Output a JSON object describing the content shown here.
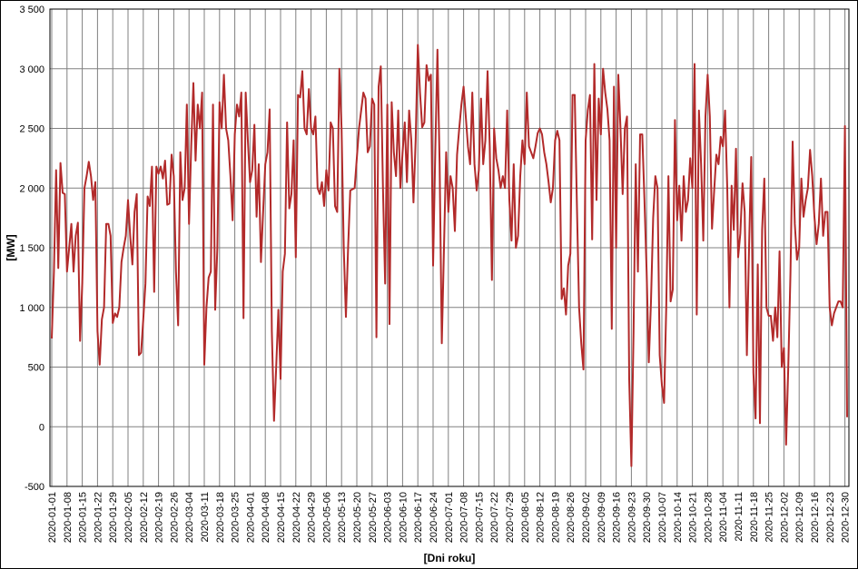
{
  "chart_data": {
    "type": "line",
    "ylabel": "[MW]",
    "xlabel": "[Dni roku]",
    "ylim": [
      -500,
      3500
    ],
    "yticks": [
      -500,
      0,
      500,
      {
        "value": 1000,
        "label": "1 000"
      },
      {
        "value": 1500,
        "label": "1 500"
      },
      {
        "value": 2000,
        "label": "2 000"
      },
      {
        "value": 2500,
        "label": "2 500"
      },
      {
        "value": 3000,
        "label": "3 000"
      },
      {
        "value": 3500,
        "label": "3 500"
      }
    ],
    "grid": true,
    "categories": [
      "2020-01-01",
      null,
      null,
      null,
      null,
      null,
      null,
      "2020-01-08",
      null,
      null,
      null,
      null,
      null,
      null,
      "2020-01-15",
      null,
      null,
      null,
      null,
      null,
      null,
      "2020-01-22",
      null,
      null,
      null,
      null,
      null,
      null,
      "2020-01-29",
      null,
      null,
      null,
      null,
      null,
      null,
      "2020-02-05",
      null,
      null,
      null,
      null,
      null,
      null,
      "2020-02-12",
      null,
      null,
      null,
      null,
      null,
      null,
      "2020-02-19",
      null,
      null,
      null,
      null,
      null,
      null,
      "2020-02-26",
      null,
      null,
      null,
      null,
      null,
      null,
      "2020-03-04",
      null,
      null,
      null,
      null,
      null,
      null,
      "2020-03-11",
      null,
      null,
      null,
      null,
      null,
      null,
      "2020-03-18",
      null,
      null,
      null,
      null,
      null,
      null,
      "2020-03-25",
      null,
      null,
      null,
      null,
      null,
      null,
      "2020-04-01",
      null,
      null,
      null,
      null,
      null,
      null,
      "2020-04-08",
      null,
      null,
      null,
      null,
      null,
      null,
      "2020-04-15",
      null,
      null,
      null,
      null,
      null,
      null,
      "2020-04-22",
      null,
      null,
      null,
      null,
      null,
      null,
      "2020-04-29",
      null,
      null,
      null,
      null,
      null,
      null,
      "2020-05-06",
      null,
      null,
      null,
      null,
      null,
      null,
      "2020-05-13",
      null,
      null,
      null,
      null,
      null,
      null,
      "2020-05-20",
      null,
      null,
      null,
      null,
      null,
      null,
      "2020-05-27",
      null,
      null,
      null,
      null,
      null,
      null,
      "2020-06-03",
      null,
      null,
      null,
      null,
      null,
      null,
      "2020-06-10",
      null,
      null,
      null,
      null,
      null,
      null,
      "2020-06-17",
      null,
      null,
      null,
      null,
      null,
      null,
      "2020-06-24",
      null,
      null,
      null,
      null,
      null,
      null,
      "2020-07-01",
      null,
      null,
      null,
      null,
      null,
      null,
      "2020-07-08",
      null,
      null,
      null,
      null,
      null,
      null,
      "2020-07-15",
      null,
      null,
      null,
      null,
      null,
      null,
      "2020-07-22",
      null,
      null,
      null,
      null,
      null,
      null,
      "2020-07-29",
      null,
      null,
      null,
      null,
      null,
      null,
      "2020-08-05",
      null,
      null,
      null,
      null,
      null,
      null,
      "2020-08-12",
      null,
      null,
      null,
      null,
      null,
      null,
      "2020-08-19",
      null,
      null,
      null,
      null,
      null,
      null,
      "2020-08-26",
      null,
      null,
      null,
      null,
      null,
      null,
      "2020-09-02",
      null,
      null,
      null,
      null,
      null,
      null,
      "2020-09-09",
      null,
      null,
      null,
      null,
      null,
      null,
      "2020-09-16",
      null,
      null,
      null,
      null,
      null,
      null,
      "2020-09-23",
      null,
      null,
      null,
      null,
      null,
      null,
      "2020-09-30",
      null,
      null,
      null,
      null,
      null,
      null,
      "2020-10-07",
      null,
      null,
      null,
      null,
      null,
      null,
      "2020-10-14",
      null,
      null,
      null,
      null,
      null,
      null,
      "2020-10-21",
      null,
      null,
      null,
      null,
      null,
      null,
      "2020-10-28",
      null,
      null,
      null,
      null,
      null,
      null,
      "2020-11-04",
      null,
      null,
      null,
      null,
      null,
      null,
      "2020-11-11",
      null,
      null,
      null,
      null,
      null,
      null,
      "2020-11-18",
      null,
      null,
      null,
      null,
      null,
      null,
      "2020-11-25",
      null,
      null,
      null,
      null,
      null,
      null,
      "2020-12-02",
      null,
      null,
      null,
      null,
      null,
      null,
      "2020-12-09",
      null,
      null,
      null,
      null,
      null,
      null,
      "2020-12-16",
      null,
      null,
      null,
      null,
      null,
      null,
      "2020-12-23",
      null,
      null,
      null,
      null,
      null,
      null,
      "2020-12-30",
      null
    ],
    "series": [
      {
        "color": "#b22a2a",
        "values": [
          740,
          1300,
          2150,
          1330,
          2210,
          1960,
          1950,
          1300,
          1500,
          1700,
          1300,
          1600,
          1710,
          720,
          1200,
          2000,
          2100,
          2220,
          2100,
          1900,
          2050,
          800,
          520,
          900,
          1000,
          1700,
          1700,
          1600,
          870,
          950,
          920,
          1000,
          1380,
          1500,
          1600,
          1900,
          1600,
          1360,
          1800,
          1950,
          600,
          620,
          900,
          1200,
          1930,
          1850,
          2180,
          1130,
          2180,
          2120,
          2180,
          2080,
          2230,
          1860,
          1870,
          2280,
          2100,
          1300,
          850,
          2300,
          1900,
          2000,
          2700,
          1700,
          2350,
          2880,
          2230,
          2700,
          2500,
          2800,
          520,
          1000,
          1250,
          1300,
          2700,
          980,
          1500,
          2720,
          2500,
          2950,
          2500,
          2400,
          2100,
          1730,
          2450,
          2700,
          2600,
          2800,
          910,
          2800,
          2400,
          2050,
          2150,
          2530,
          1760,
          2200,
          1380,
          1800,
          2200,
          2300,
          2660,
          800,
          50,
          500,
          980,
          400,
          1300,
          1450,
          2550,
          1830,
          1950,
          2400,
          1420,
          2780,
          2760,
          2980,
          2500,
          2450,
          2830,
          2500,
          2450,
          2600,
          2000,
          1950,
          2050,
          1850,
          2150,
          1980,
          2550,
          2500,
          1850,
          1800,
          3000,
          2500,
          1500,
          920,
          1500,
          1980,
          1990,
          2000,
          2250,
          2500,
          2650,
          2800,
          2750,
          2300,
          2350,
          2750,
          2700,
          750,
          2850,
          3020,
          2000,
          1200,
          2700,
          860,
          2720,
          2300,
          2100,
          2650,
          2000,
          2300,
          2550,
          2050,
          2650,
          2400,
          1880,
          2400,
          3200,
          2800,
          2510,
          2550,
          3030,
          2900,
          2950,
          1350,
          2300,
          3160,
          2200,
          700,
          1500,
          2300,
          1800,
          2100,
          2000,
          1640,
          2280,
          2500,
          2700,
          2850,
          2600,
          2350,
          2200,
          2800,
          2200,
          1980,
          2150,
          2750,
          2200,
          2400,
          2980,
          2350,
          1230,
          2500,
          2250,
          2150,
          2000,
          2100,
          2000,
          2650,
          1900,
          1560,
          2200,
          1500,
          1600,
          2100,
          2400,
          2200,
          2800,
          2350,
          2300,
          2250,
          2350,
          2460,
          2500,
          2450,
          2300,
          2200,
          2050,
          1880,
          2000,
          2400,
          2480,
          2400,
          1070,
          1160,
          940,
          1350,
          1450,
          2780,
          2780,
          1860,
          1000,
          700,
          480,
          2400,
          2650,
          2780,
          1570,
          3040,
          1900,
          2750,
          2450,
          3000,
          2800,
          2660,
          2400,
          820,
          2850,
          1500,
          2950,
          2500,
          1950,
          2500,
          2600,
          400,
          -330,
          800,
          2200,
          1300,
          2450,
          2450,
          1900,
          1300,
          540,
          1050,
          1750,
          2100,
          2000,
          600,
          350,
          200,
          1000,
          2100,
          1050,
          1150,
          2570,
          1730,
          2020,
          1560,
          2100,
          1800,
          1900,
          2250,
          2000,
          3040,
          940,
          2650,
          2200,
          1560,
          2600,
          2950,
          2600,
          1660,
          1980,
          2280,
          2200,
          2430,
          2350,
          2650,
          2000,
          1000,
          2020,
          1650,
          2330,
          1420,
          1620,
          2040,
          1800,
          600,
          1500,
          2260,
          450,
          70,
          1360,
          30,
          1650,
          2080,
          1000,
          930,
          930,
          720,
          1000,
          750,
          1470,
          500,
          660,
          -150,
          500,
          1280,
          2390,
          1700,
          1400,
          1500,
          2080,
          1760,
          1900,
          2000,
          2320,
          2100,
          1760,
          1530,
          1700,
          2080,
          1600,
          1800,
          1800,
          1000,
          850,
          950,
          1000,
          1050,
          1050,
          1000,
          2520,
          80
        ]
      }
    ]
  }
}
